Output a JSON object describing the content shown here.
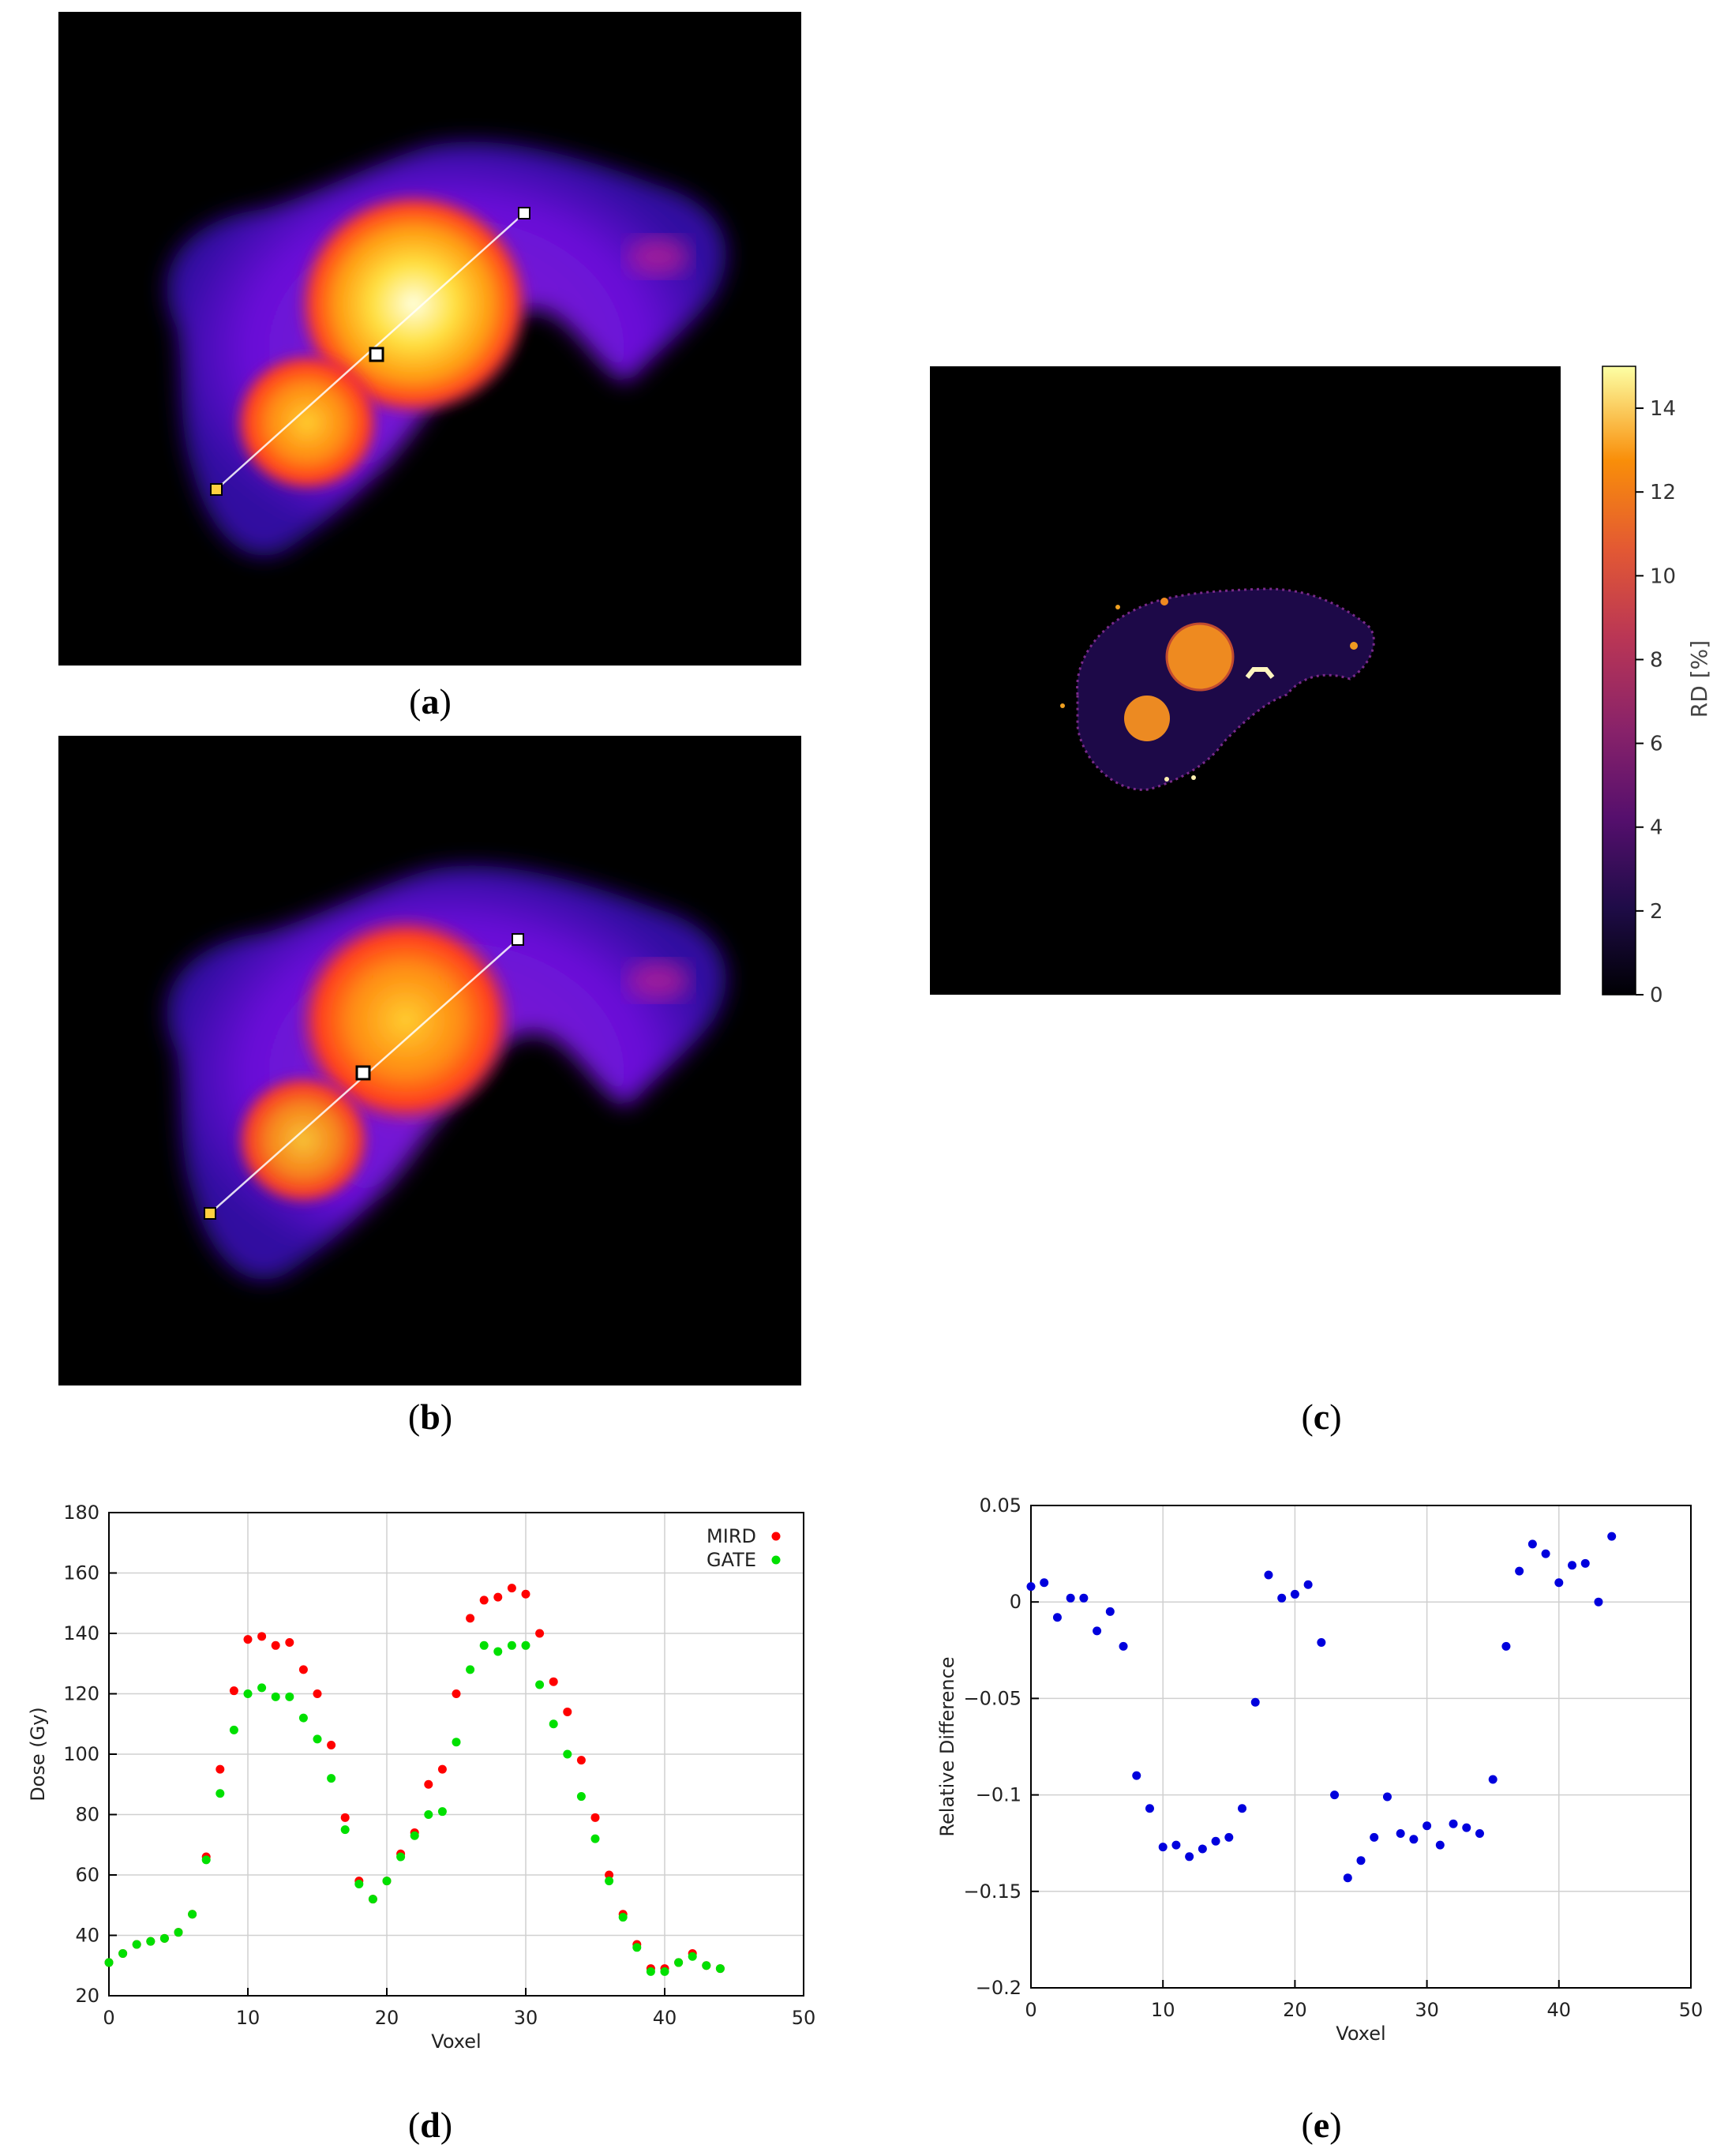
{
  "captions": {
    "a": "a",
    "b": "b",
    "c": "c",
    "d": "d",
    "e": "e"
  },
  "colorbar": {
    "label": "RD [%]",
    "ticks": [
      "0",
      "2",
      "4",
      "6",
      "8",
      "10",
      "12",
      "14"
    ],
    "max": 15
  },
  "chart_data": [
    {
      "panel": "d",
      "type": "scatter",
      "xlabel": "Voxel",
      "ylabel": "Dose (Gy)",
      "xlim": [
        0,
        50
      ],
      "ylim": [
        20,
        180
      ],
      "xticks": [
        0,
        10,
        20,
        30,
        40,
        50
      ],
      "yticks": [
        20,
        40,
        60,
        80,
        100,
        120,
        140,
        160,
        180
      ],
      "grid": true,
      "legend": "top-right",
      "series": [
        {
          "name": "MIRD",
          "color": "#ff0000",
          "x": [
            0,
            1,
            2,
            3,
            4,
            5,
            6,
            7,
            8,
            9,
            10,
            11,
            12,
            13,
            14,
            15,
            16,
            17,
            18,
            19,
            20,
            21,
            22,
            23,
            24,
            25,
            26,
            27,
            28,
            29,
            30,
            31,
            32,
            33,
            34,
            35,
            36,
            37,
            38,
            39,
            40,
            41,
            42,
            43,
            44
          ],
          "values": [
            31,
            34,
            37,
            38,
            39,
            41,
            47,
            66,
            95,
            121,
            138,
            139,
            136,
            137,
            128,
            120,
            103,
            79,
            58,
            52,
            58,
            67,
            74,
            90,
            95,
            120,
            145,
            151,
            152,
            155,
            153,
            140,
            124,
            114,
            98,
            79,
            60,
            47,
            37,
            29,
            29,
            31,
            34,
            30,
            29
          ]
        },
        {
          "name": "GATE",
          "color": "#00e000",
          "x": [
            0,
            1,
            2,
            3,
            4,
            5,
            6,
            7,
            8,
            9,
            10,
            11,
            12,
            13,
            14,
            15,
            16,
            17,
            18,
            19,
            20,
            21,
            22,
            23,
            24,
            25,
            26,
            27,
            28,
            29,
            30,
            31,
            32,
            33,
            34,
            35,
            36,
            37,
            38,
            39,
            40,
            41,
            42,
            43,
            44
          ],
          "values": [
            31,
            34,
            37,
            38,
            39,
            41,
            47,
            65,
            87,
            108,
            120,
            122,
            119,
            119,
            112,
            105,
            92,
            75,
            57,
            52,
            58,
            66,
            73,
            80,
            81,
            104,
            128,
            136,
            134,
            136,
            136,
            123,
            110,
            100,
            86,
            72,
            58,
            46,
            36,
            28,
            28,
            31,
            33,
            30,
            29
          ]
        }
      ]
    },
    {
      "panel": "e",
      "type": "scatter",
      "xlabel": "Voxel",
      "ylabel": "Relative Difference",
      "xlim": [
        0,
        50
      ],
      "ylim": [
        -0.2,
        0.05
      ],
      "xticks": [
        0,
        10,
        20,
        30,
        40,
        50
      ],
      "yticks": [
        -0.2,
        -0.15,
        -0.1,
        -0.05,
        0,
        0.05
      ],
      "ytick_labels": [
        "−0.2",
        "−0.15",
        "−0.1",
        "−0.05",
        "0",
        "0.05"
      ],
      "grid": true,
      "series": [
        {
          "color": "#0000dd",
          "x": [
            0,
            1,
            2,
            3,
            4,
            5,
            6,
            7,
            8,
            9,
            10,
            11,
            12,
            13,
            14,
            15,
            16,
            17,
            18,
            19,
            20,
            21,
            22,
            23,
            24,
            25,
            26,
            27,
            28,
            29,
            30,
            31,
            32,
            33,
            34,
            35,
            36,
            37,
            38,
            39,
            40,
            41,
            42,
            43,
            44
          ],
          "values": [
            0.008,
            0.01,
            -0.008,
            0.002,
            0.002,
            -0.015,
            -0.005,
            -0.023,
            -0.09,
            -0.107,
            -0.127,
            -0.126,
            -0.132,
            -0.128,
            -0.124,
            -0.122,
            -0.107,
            -0.052,
            0.014,
            0.002,
            0.004,
            0.009,
            -0.021,
            -0.1,
            -0.143,
            -0.134,
            -0.122,
            -0.101,
            -0.12,
            -0.123,
            -0.116,
            -0.126,
            -0.115,
            -0.117,
            -0.12,
            -0.092,
            -0.023,
            0.016,
            0.03,
            0.025,
            0.01,
            0.019,
            0.02,
            0.0,
            0.034
          ]
        }
      ]
    }
  ]
}
